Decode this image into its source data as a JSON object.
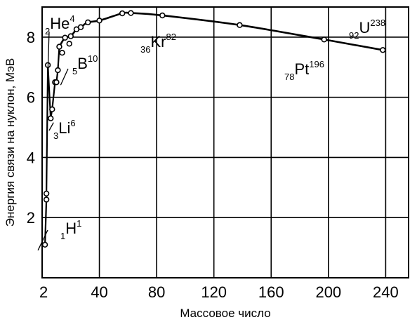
{
  "chart_data": {
    "type": "line",
    "xlabel": "Массовое число",
    "ylabel": "Энергия связи на нуклон, МэВ",
    "xlim": [
      0,
      256
    ],
    "ylim": [
      0,
      9
    ],
    "grid": true,
    "x_tick_labels": [
      "2",
      "40",
      "80",
      "120",
      "160",
      "200",
      "240"
    ],
    "y_tick_labels": [
      "2",
      "4",
      "6",
      "8"
    ],
    "series": [
      {
        "points": [
          {
            "x": 2,
            "y": 1.1
          },
          {
            "x": 3,
            "y": 2.6
          },
          {
            "x": 3,
            "y": 2.8
          },
          {
            "x": 4,
            "y": 7.07
          },
          {
            "x": 6,
            "y": 5.3
          },
          {
            "x": 7,
            "y": 5.6
          },
          {
            "x": 9,
            "y": 6.5
          },
          {
            "x": 10,
            "y": 6.5
          },
          {
            "x": 11,
            "y": 6.9
          },
          {
            "x": 12,
            "y": 7.68
          },
          {
            "x": 14,
            "y": 7.48
          },
          {
            "x": 16,
            "y": 7.98
          },
          {
            "x": 19,
            "y": 7.78
          },
          {
            "x": 20,
            "y": 8.03
          },
          {
            "x": 24,
            "y": 8.26
          },
          {
            "x": 27,
            "y": 8.33
          },
          {
            "x": 32,
            "y": 8.49
          },
          {
            "x": 40,
            "y": 8.55
          },
          {
            "x": 56,
            "y": 8.79
          },
          {
            "x": 62,
            "y": 8.8
          },
          {
            "x": 84,
            "y": 8.72
          },
          {
            "x": 138,
            "y": 8.4
          },
          {
            "x": 197,
            "y": 7.92
          },
          {
            "x": 238,
            "y": 7.57
          }
        ]
      }
    ],
    "annotations": [
      {
        "z": "1",
        "symbol": "H",
        "a": "1",
        "x": 2,
        "y": 1.1
      },
      {
        "z": "3",
        "symbol": "Li",
        "a": "6",
        "x": 6,
        "y": 5.3
      },
      {
        "z": "5",
        "symbol": "B",
        "a": "10",
        "x": 10,
        "y": 6.5
      },
      {
        "z": "2",
        "symbol": "He",
        "a": "4",
        "x": 4,
        "y": 7.07
      },
      {
        "z": "36",
        "symbol": "Kr",
        "a": "82",
        "x": 84,
        "y": 8.72
      },
      {
        "z": "78",
        "symbol": "Pt",
        "a": "196",
        "x": 197,
        "y": 7.92
      },
      {
        "z": "92",
        "symbol": "U",
        "a": "238",
        "x": 238,
        "y": 7.57
      }
    ]
  }
}
